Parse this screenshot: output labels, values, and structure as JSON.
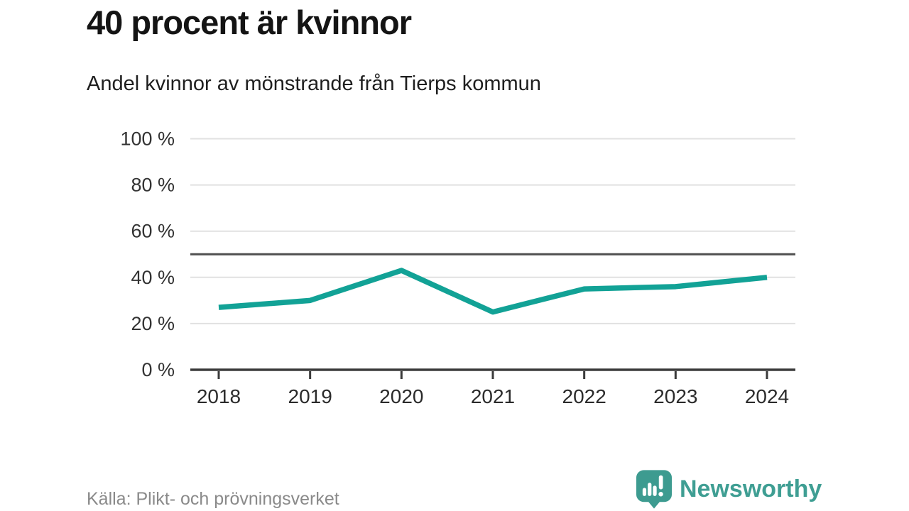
{
  "header": {
    "title": "40 procent är kvinnor",
    "subtitle": "Andel kvinnor av mönstrande från Tierps kommun"
  },
  "chart_data": {
    "type": "line",
    "title": "40 procent är kvinnor",
    "subtitle": "Andel kvinnor av mönstrande från Tierps kommun",
    "categories": [
      "2018",
      "2019",
      "2020",
      "2021",
      "2022",
      "2023",
      "2024"
    ],
    "series": [
      {
        "name": "Andel kvinnor av mönstrande från Tierps kommun",
        "values": [
          27,
          30,
          43,
          25,
          35,
          36,
          40
        ]
      }
    ],
    "xlabel": "",
    "ylabel": "",
    "ylim": [
      0,
      100
    ],
    "yticks": [
      0,
      20,
      40,
      60,
      80,
      100
    ],
    "ytick_labels": [
      "0 %",
      "20 %",
      "40 %",
      "60 %",
      "80 %",
      "100 %"
    ],
    "reference_line": 50,
    "grid": true,
    "legend": false,
    "colors": {
      "line": "#12a296",
      "gridline": "#e1e1e1",
      "reference_line": "#4f4f4f",
      "axis": "#3b3b3b",
      "tick_label": "#333333",
      "x_label": "#2b2b2b"
    }
  },
  "footer": {
    "source": "Källa: Plikt- och prövningsverket",
    "logo_text": "Newsworthy",
    "logo_color": "#3f9e93"
  }
}
